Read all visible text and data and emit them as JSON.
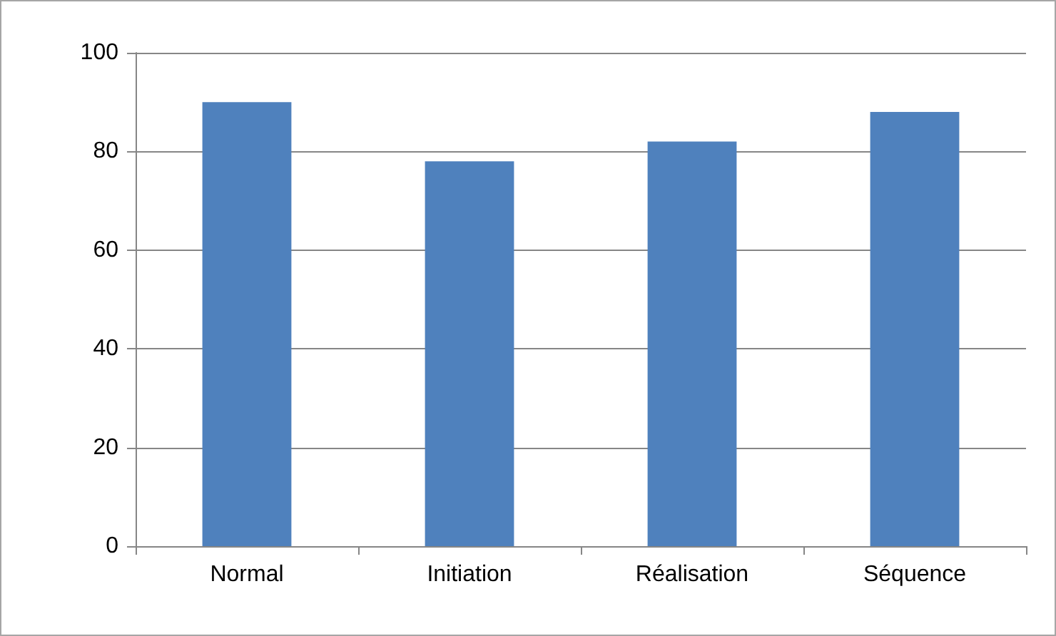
{
  "chart_data": {
    "type": "bar",
    "categories": [
      "Normal",
      "Initiation",
      "Réalisation",
      "Séquence"
    ],
    "values": [
      90,
      78,
      82,
      88
    ],
    "color": "#4f81bd",
    "ylim": [
      0,
      100
    ],
    "yticks": [
      0,
      20,
      40,
      60,
      80,
      100
    ],
    "grid": "y"
  }
}
